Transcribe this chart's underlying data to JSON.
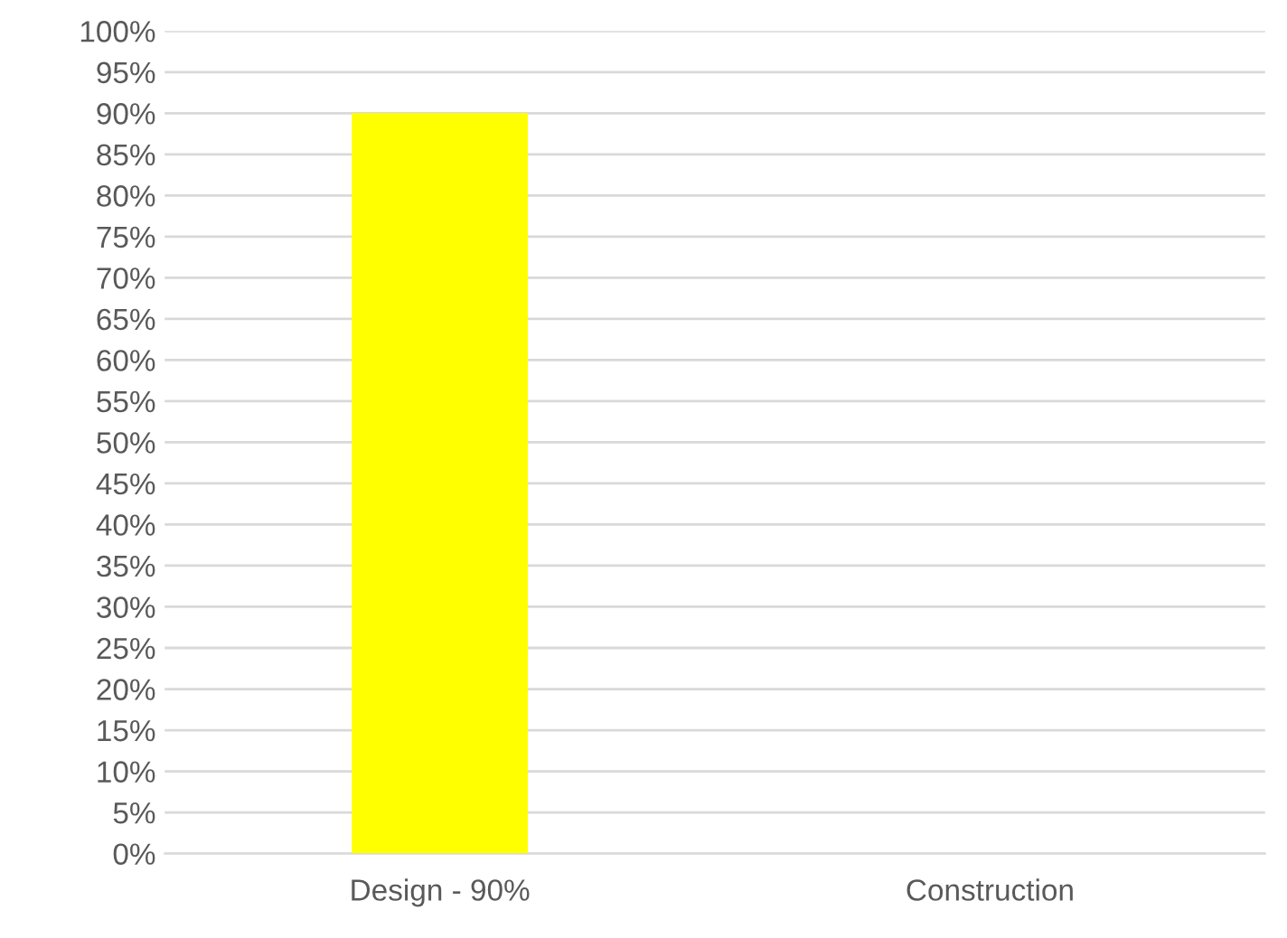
{
  "chart_data": {
    "type": "bar",
    "categories": [
      "Design - 90%",
      "Construction"
    ],
    "series": [
      {
        "color": "#ffff00",
        "values": [
          90,
          0
        ]
      }
    ],
    "ylim": [
      0,
      100
    ],
    "yticks": [
      {
        "value": 0,
        "label": "0%"
      },
      {
        "value": 5,
        "label": "5%"
      },
      {
        "value": 10,
        "label": "10%"
      },
      {
        "value": 15,
        "label": "15%"
      },
      {
        "value": 20,
        "label": "20%"
      },
      {
        "value": 25,
        "label": "25%"
      },
      {
        "value": 30,
        "label": "30%"
      },
      {
        "value": 35,
        "label": "35%"
      },
      {
        "value": 40,
        "label": "40%"
      },
      {
        "value": 45,
        "label": "45%"
      },
      {
        "value": 50,
        "label": "50%"
      },
      {
        "value": 55,
        "label": "55%"
      },
      {
        "value": 60,
        "label": "60%"
      },
      {
        "value": 65,
        "label": "65%"
      },
      {
        "value": 70,
        "label": "70%"
      },
      {
        "value": 75,
        "label": "75%"
      },
      {
        "value": 80,
        "label": "80%"
      },
      {
        "value": 85,
        "label": "85%"
      },
      {
        "value": 90,
        "label": "90%"
      },
      {
        "value": 95,
        "label": "95%"
      },
      {
        "value": 100,
        "label": "100%"
      }
    ],
    "grid": "y",
    "legend": false
  }
}
